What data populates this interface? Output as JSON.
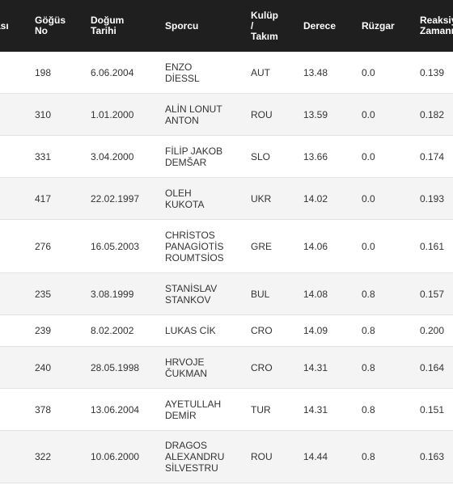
{
  "columns": {
    "sira": "ası",
    "gogus": "Göğüs\nNo",
    "dogum": "Doğum\nTarihi",
    "sporcu": "Sporcu",
    "kulup": "Kulüp\n/\nTakım",
    "derece": "Derece",
    "ruzgar": "Rüzgar",
    "reaksiyon": "Reaksiy\nZamanı"
  },
  "rows": [
    {
      "bib": "198",
      "dob": "6.06.2004",
      "name": "ENZO\nDİESSL",
      "club": "AUT",
      "mark": "13.48",
      "wind": "0.0",
      "reaction": "0.139"
    },
    {
      "bib": "310",
      "dob": "1.01.2000",
      "name": "ALİN LONUT\nANTON",
      "club": "ROU",
      "mark": "13.59",
      "wind": "0.0",
      "reaction": "0.182"
    },
    {
      "bib": "331",
      "dob": "3.04.2000",
      "name": "FİLİP JAKOB\nDEMŠAR",
      "club": "SLO",
      "mark": "13.66",
      "wind": "0.0",
      "reaction": "0.174"
    },
    {
      "bib": "417",
      "dob": "22.02.1997",
      "name": "OLEH\nKUKOTA",
      "club": "UKR",
      "mark": "14.02",
      "wind": "0.0",
      "reaction": "0.193"
    },
    {
      "bib": "276",
      "dob": "16.05.2003",
      "name": "CHRİSTOS\nPANAGİOTİS\nROUMTSİOS",
      "club": "GRE",
      "mark": "14.06",
      "wind": "0.0",
      "reaction": "0.161"
    },
    {
      "bib": "235",
      "dob": "3.08.1999",
      "name": "STANİSLAV\nSTANKOV",
      "club": "BUL",
      "mark": "14.08",
      "wind": "0.8",
      "reaction": "0.157"
    },
    {
      "bib": "239",
      "dob": "8.02.2002",
      "name": "LUKAS CİK",
      "club": "CRO",
      "mark": "14.09",
      "wind": "0.8",
      "reaction": "0.200"
    },
    {
      "bib": "240",
      "dob": "28.05.1998",
      "name": "HRVOJE\nČUKMAN",
      "club": "CRO",
      "mark": "14.31",
      "wind": "0.8",
      "reaction": "0.164"
    },
    {
      "bib": "378",
      "dob": "13.06.2004",
      "name": "AYETULLAH\nDEMİR",
      "club": "TUR",
      "mark": "14.31",
      "wind": "0.8",
      "reaction": "0.151"
    },
    {
      "bib": "322",
      "dob": "10.06.2000",
      "name": "DRAGOS\nALEXANDRU\nSİLVESTRU",
      "club": "ROU",
      "mark": "14.44",
      "wind": "0.8",
      "reaction": "0.163"
    }
  ]
}
